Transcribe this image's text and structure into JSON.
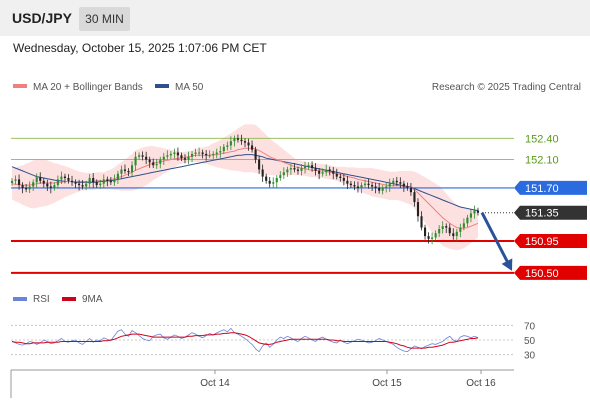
{
  "header": {
    "symbol": "USD/JPY",
    "timeframe": "30 MIN",
    "datetime": "Wednesday, October 15, 2025 1:07:06 PM CET"
  },
  "legend": {
    "ma20_label": "MA 20 + Bollinger Bands",
    "ma50_label": "MA 50",
    "copyright": "Research © 2025 Trading Central",
    "rsi_label": "RSI",
    "rsi_ma_label": "9MA"
  },
  "colors": {
    "ma20": "#f08080",
    "bollinger_fill": "#fde1e1",
    "ma50": "#2f4f8f",
    "candle_up": "#2e8b2e",
    "candle_down": "#222222",
    "resistance_green": "#8db84a",
    "pivot_blue": "#2b6be0",
    "support_red": "#e00000",
    "forecast_arrow": "#2a5298",
    "rsi": "#6a85d8",
    "rsi_ma": "#d0021b"
  },
  "chart_data": [
    {
      "type": "candlestick",
      "title": "USD/JPY 30 MIN",
      "ylim": [
        150.4,
        152.8
      ],
      "levels": [
        {
          "value": 152.4,
          "label": "152.40",
          "kind": "resistance"
        },
        {
          "value": 152.1,
          "label": "152.10",
          "kind": "resistance"
        },
        {
          "value": 151.7,
          "label": "151.70",
          "kind": "pivot"
        },
        {
          "value": 151.35,
          "label": "151.35",
          "kind": "last"
        },
        {
          "value": 150.95,
          "label": "150.95",
          "kind": "support"
        },
        {
          "value": 150.5,
          "label": "150.50",
          "kind": "support"
        }
      ],
      "x_ticks": [
        "Oct 14",
        "Oct 15",
        "Oct 16"
      ],
      "series": [
        {
          "name": "MA 20 + Bollinger Bands"
        },
        {
          "name": "MA 50"
        }
      ],
      "closes": [
        151.8,
        151.82,
        151.74,
        151.7,
        151.68,
        151.72,
        151.78,
        151.85,
        151.8,
        151.76,
        151.72,
        151.7,
        151.74,
        151.82,
        151.86,
        151.84,
        151.8,
        151.78,
        151.76,
        151.74,
        151.72,
        151.76,
        151.84,
        151.78,
        151.74,
        151.76,
        151.82,
        151.8,
        151.78,
        151.82,
        151.9,
        151.96,
        151.94,
        151.92,
        152.02,
        152.14,
        152.16,
        152.14,
        152.1,
        152.06,
        152.02,
        152.04,
        152.1,
        152.14,
        152.16,
        152.18,
        152.2,
        152.16,
        152.12,
        152.1,
        152.14,
        152.18,
        152.2,
        152.2,
        152.18,
        152.16,
        152.16,
        152.18,
        152.2,
        152.22,
        152.28,
        152.3,
        152.36,
        152.4,
        152.38,
        152.36,
        152.34,
        152.3,
        152.24,
        152.1,
        151.96,
        151.86,
        151.8,
        151.76,
        151.78,
        151.84,
        151.88,
        151.92,
        151.96,
        151.98,
        151.96,
        151.94,
        151.98,
        152.0,
        152.02,
        151.98,
        151.94,
        151.9,
        151.92,
        151.96,
        151.94,
        151.9,
        151.86,
        151.84,
        151.8,
        151.76,
        151.74,
        151.72,
        151.7,
        151.74,
        151.76,
        151.74,
        151.72,
        151.7,
        151.66,
        151.7,
        151.72,
        151.76,
        151.8,
        151.78,
        151.76,
        151.72,
        151.7,
        151.64,
        151.5,
        151.3,
        151.14,
        151.02,
        150.98,
        151.0,
        151.06,
        151.12,
        151.16,
        151.14,
        151.06,
        151.02,
        151.08,
        151.14,
        151.2,
        151.28,
        151.34,
        151.38,
        151.35
      ],
      "ma20": [
        151.76,
        151.75,
        151.75,
        151.74,
        151.74,
        151.74,
        151.75,
        151.76,
        151.77,
        151.77,
        151.77,
        151.77,
        151.77,
        151.78,
        151.78,
        151.79,
        151.79,
        151.79,
        151.79,
        151.79,
        151.79,
        151.79,
        151.79,
        151.79,
        151.8,
        151.8,
        151.8,
        151.81,
        151.82,
        151.83,
        151.85,
        151.86,
        151.88,
        151.9,
        151.92,
        151.95,
        151.97,
        151.99,
        152.01,
        152.03,
        152.05,
        152.06,
        152.07,
        152.08,
        152.09,
        152.1,
        152.11,
        152.12,
        152.12,
        152.13,
        152.14,
        152.15,
        152.16,
        152.16,
        152.16,
        152.16,
        152.16,
        152.17,
        152.17,
        152.18,
        152.19,
        152.2,
        152.21,
        152.22,
        152.24,
        152.25,
        152.26,
        152.26,
        152.26,
        152.25,
        152.23,
        152.2,
        152.17,
        152.14,
        152.12,
        152.1,
        152.08,
        152.06,
        152.04,
        152.02,
        152.0,
        151.99,
        151.98,
        151.97,
        151.96,
        151.95,
        151.95,
        151.94,
        151.94,
        151.93,
        151.92,
        151.91,
        151.9,
        151.89,
        151.88,
        151.86,
        151.85,
        151.84,
        151.82,
        151.81,
        151.8,
        151.79,
        151.78,
        151.77,
        151.76,
        151.75,
        151.74,
        151.73,
        151.73,
        151.73,
        151.73,
        151.72,
        151.71,
        151.7,
        151.67,
        151.63,
        151.58,
        151.53,
        151.48,
        151.43,
        151.38,
        151.33,
        151.28,
        151.24,
        151.2,
        151.17,
        151.14,
        151.13,
        151.13,
        151.14,
        151.16,
        151.18,
        151.2
      ],
      "ma50": [
        152.0,
        151.98,
        151.96,
        151.94,
        151.92,
        151.9,
        151.88,
        151.86,
        151.85,
        151.84,
        151.83,
        151.82,
        151.81,
        151.8,
        151.8,
        151.79,
        151.79,
        151.79,
        151.78,
        151.78,
        151.78,
        151.78,
        151.78,
        151.78,
        151.78,
        151.79,
        151.79,
        151.8,
        151.8,
        151.81,
        151.82,
        151.83,
        151.84,
        151.85,
        151.86,
        151.87,
        151.88,
        151.89,
        151.9,
        151.91,
        151.92,
        151.93,
        151.94,
        151.95,
        151.96,
        151.97,
        151.98,
        151.99,
        152.0,
        152.01,
        152.02,
        152.03,
        152.04,
        152.05,
        152.06,
        152.07,
        152.08,
        152.09,
        152.1,
        152.11,
        152.12,
        152.13,
        152.14,
        152.15,
        152.16,
        152.16,
        152.17,
        152.17,
        152.17,
        152.16,
        152.15,
        152.14,
        152.12,
        152.11,
        152.1,
        152.09,
        152.08,
        152.07,
        152.06,
        152.05,
        152.04,
        152.03,
        152.02,
        152.01,
        152.0,
        151.99,
        151.98,
        151.97,
        151.96,
        151.95,
        151.94,
        151.93,
        151.92,
        151.91,
        151.9,
        151.89,
        151.88,
        151.87,
        151.86,
        151.85,
        151.84,
        151.83,
        151.82,
        151.81,
        151.8,
        151.79,
        151.78,
        151.77,
        151.76,
        151.75,
        151.74,
        151.73,
        151.72,
        151.71,
        151.69,
        151.67,
        151.65,
        151.63,
        151.61,
        151.59,
        151.57,
        151.55,
        151.53,
        151.51,
        151.49,
        151.47,
        151.45,
        151.43,
        151.42,
        151.41,
        151.4,
        151.39,
        151.38
      ],
      "bb_width": [
        0.22,
        0.24,
        0.26,
        0.28,
        0.3,
        0.32,
        0.34,
        0.34,
        0.34,
        0.33,
        0.32,
        0.3,
        0.28,
        0.26,
        0.24,
        0.22,
        0.2,
        0.18,
        0.16,
        0.14,
        0.13,
        0.12,
        0.12,
        0.12,
        0.12,
        0.12,
        0.12,
        0.13,
        0.14,
        0.16,
        0.18,
        0.2,
        0.22,
        0.24,
        0.26,
        0.28,
        0.28,
        0.28,
        0.27,
        0.26,
        0.24,
        0.22,
        0.2,
        0.18,
        0.16,
        0.14,
        0.12,
        0.1,
        0.08,
        0.08,
        0.08,
        0.08,
        0.09,
        0.1,
        0.11,
        0.12,
        0.14,
        0.16,
        0.18,
        0.2,
        0.22,
        0.24,
        0.26,
        0.28,
        0.3,
        0.32,
        0.34,
        0.34,
        0.34,
        0.34,
        0.32,
        0.3,
        0.28,
        0.26,
        0.24,
        0.22,
        0.2,
        0.18,
        0.16,
        0.14,
        0.12,
        0.11,
        0.1,
        0.1,
        0.1,
        0.1,
        0.1,
        0.1,
        0.1,
        0.1,
        0.1,
        0.1,
        0.1,
        0.11,
        0.12,
        0.13,
        0.14,
        0.15,
        0.16,
        0.17,
        0.18,
        0.19,
        0.2,
        0.2,
        0.2,
        0.2,
        0.2,
        0.2,
        0.2,
        0.2,
        0.21,
        0.22,
        0.23,
        0.24,
        0.26,
        0.28,
        0.3,
        0.32,
        0.34,
        0.36,
        0.38,
        0.4,
        0.4,
        0.38,
        0.36,
        0.34,
        0.32,
        0.3,
        0.28,
        0.26,
        0.24,
        0.22,
        0.2
      ]
    },
    {
      "type": "line",
      "title": "RSI",
      "ylim": [
        20,
        80
      ],
      "y_ticks": [
        70,
        50,
        30
      ],
      "series": [
        {
          "name": "RSI",
          "values": [
            48,
            46,
            44,
            43,
            45,
            48,
            47,
            44,
            46,
            50,
            48,
            45,
            46,
            49,
            52,
            48,
            47,
            49,
            50,
            46,
            44,
            48,
            52,
            47,
            50,
            49,
            53,
            51,
            49,
            56,
            62,
            64,
            58,
            55,
            63,
            60,
            56,
            52,
            50,
            49,
            55,
            57,
            58,
            53,
            51,
            54,
            57,
            55,
            52,
            54,
            57,
            60,
            58,
            55,
            53,
            56,
            59,
            57,
            60,
            62,
            64,
            61,
            66,
            60,
            58,
            55,
            52,
            48,
            44,
            38,
            34,
            42,
            46,
            40,
            44,
            50,
            54,
            52,
            55,
            53,
            50,
            48,
            52,
            55,
            53,
            50,
            48,
            52,
            54,
            51,
            49,
            47,
            46,
            50,
            47,
            45,
            47,
            49,
            51,
            50,
            48,
            46,
            47,
            49,
            52,
            50,
            48,
            46,
            44,
            40,
            37,
            35,
            34,
            38,
            42,
            40,
            38,
            41,
            43,
            45,
            44,
            46,
            48,
            52,
            55,
            50,
            48,
            54,
            56,
            55,
            53,
            55,
            53
          ]
        },
        {
          "name": "9MA",
          "values": [
            48,
            47,
            47,
            46,
            45,
            45,
            46,
            46,
            46,
            46,
            47,
            47,
            47,
            47,
            48,
            48,
            48,
            48,
            48,
            48,
            48,
            48,
            48,
            48,
            48,
            48,
            49,
            49,
            50,
            51,
            53,
            55,
            56,
            57,
            58,
            58,
            58,
            57,
            56,
            55,
            54,
            54,
            54,
            54,
            54,
            54,
            54,
            54,
            54,
            54,
            55,
            55,
            56,
            56,
            56,
            57,
            57,
            57,
            58,
            58,
            59,
            59,
            60,
            60,
            59,
            58,
            57,
            55,
            52,
            49,
            46,
            45,
            44,
            44,
            45,
            47,
            48,
            49,
            50,
            51,
            51,
            51,
            51,
            51,
            51,
            51,
            51,
            51,
            51,
            51,
            50,
            50,
            49,
            49,
            48,
            48,
            48,
            48,
            48,
            48,
            48,
            48,
            48,
            48,
            48,
            48,
            48,
            47,
            46,
            45,
            43,
            42,
            40,
            39,
            39,
            39,
            39,
            39,
            40,
            40,
            41,
            42,
            43,
            45,
            47,
            47,
            48,
            49,
            50,
            51,
            52,
            52,
            53
          ]
        }
      ]
    }
  ]
}
